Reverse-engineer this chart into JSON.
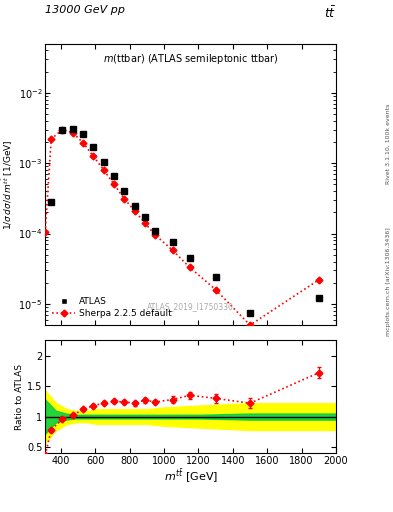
{
  "title_left": "13000 GeV pp",
  "title_right": "tt",
  "right_label_top": "Rivet 3.1.10, 100k events",
  "right_label_bottom": "mcplots.cern.ch [arXiv:1306.3436]",
  "watermark": "ATLAS_2019_I1750330",
  "main_title": "m(ttbar) (ATLAS semileptonic ttbar)",
  "xlabel": "m^{tbar(t)} [GeV]",
  "ylabel_main": "1 / σ dσ / d m^{tbar(t)}  [1/GeV]",
  "ylabel_ratio": "Ratio to ATLAS",
  "atlas_x": [
    345,
    410,
    470,
    530,
    590,
    650,
    710,
    770,
    830,
    890,
    950,
    1050,
    1150,
    1300,
    1500,
    1900
  ],
  "atlas_y": [
    0.00028,
    0.00295,
    0.0031,
    0.0026,
    0.0017,
    0.00105,
    0.00065,
    0.0004,
    0.00025,
    0.00017,
    0.00011,
    7.5e-05,
    4.5e-05,
    2.4e-05,
    7.5e-06,
    1.2e-05
  ],
  "sherpa_x": [
    310,
    345,
    410,
    470,
    530,
    590,
    650,
    710,
    770,
    830,
    890,
    950,
    1050,
    1150,
    1300,
    1500,
    1900
  ],
  "sherpa_y": [
    0.000105,
    0.0022,
    0.003,
    0.0027,
    0.00195,
    0.00125,
    0.0008,
    0.0005,
    0.00031,
    0.00021,
    0.00014,
    9.5e-05,
    5.8e-05,
    3.3e-05,
    1.6e-05,
    5e-06,
    2.2e-05
  ],
  "ratio_sherpa_x": [
    310,
    345,
    410,
    470,
    530,
    590,
    650,
    710,
    770,
    830,
    890,
    950,
    1050,
    1150,
    1300,
    1500,
    1900
  ],
  "ratio_sherpa_y": [
    0.37,
    0.78,
    0.96,
    1.02,
    1.12,
    1.18,
    1.22,
    1.25,
    1.24,
    1.22,
    1.27,
    1.24,
    1.28,
    1.35,
    1.3,
    1.22,
    1.72
  ],
  "ratio_err": [
    0.03,
    0.03,
    0.02,
    0.02,
    0.02,
    0.02,
    0.03,
    0.03,
    0.04,
    0.04,
    0.04,
    0.04,
    0.05,
    0.06,
    0.07,
    0.08,
    0.09
  ],
  "green_band_edges": [
    310,
    370,
    430,
    490,
    550,
    610,
    670,
    730,
    800,
    900,
    1000,
    1200,
    1500,
    2000
  ],
  "green_band_low": [
    0.72,
    0.9,
    0.95,
    0.97,
    0.97,
    0.97,
    0.97,
    0.97,
    0.97,
    0.97,
    0.97,
    0.97,
    0.95,
    0.95
  ],
  "green_band_high": [
    1.28,
    1.1,
    1.05,
    1.03,
    1.03,
    1.03,
    1.03,
    1.03,
    1.03,
    1.03,
    1.03,
    1.03,
    1.05,
    1.05
  ],
  "yellow_band_edges": [
    310,
    370,
    430,
    490,
    550,
    610,
    670,
    730,
    800,
    900,
    1000,
    1200,
    1500,
    2000
  ],
  "yellow_band_low": [
    0.57,
    0.77,
    0.87,
    0.91,
    0.91,
    0.88,
    0.88,
    0.88,
    0.88,
    0.88,
    0.85,
    0.82,
    0.78,
    0.78
  ],
  "yellow_band_high": [
    1.43,
    1.23,
    1.13,
    1.09,
    1.09,
    1.12,
    1.12,
    1.12,
    1.12,
    1.12,
    1.15,
    1.18,
    1.22,
    1.22
  ],
  "ylim_main": [
    5e-06,
    0.05
  ],
  "ylim_ratio": [
    0.4,
    2.25
  ],
  "xlim": [
    310,
    2000
  ],
  "yticks_ratio": [
    0.5,
    1.0,
    1.5,
    2.0
  ]
}
